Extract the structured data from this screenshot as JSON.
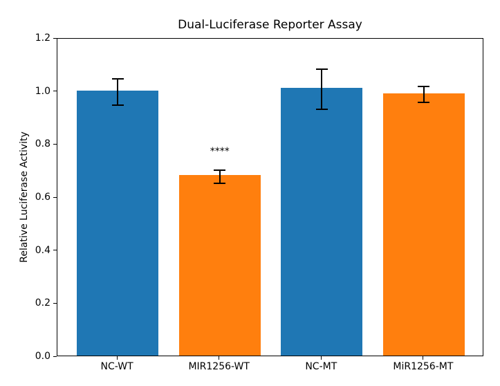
{
  "chart_data": {
    "type": "bar",
    "title": "Dual-Luciferase Reporter Assay",
    "ylabel": "Relative Luciferase Activity",
    "xlabel": "",
    "categories": [
      "NC-WT",
      "MIR1256-WT",
      "NC-MT",
      "MiR1256-MT"
    ],
    "values": [
      1.0,
      0.68,
      1.01,
      0.99
    ],
    "errors": [
      0.05,
      0.025,
      0.075,
      0.03
    ],
    "bar_colors": [
      "#1f77b4",
      "#ff7f0e",
      "#1f77b4",
      "#ff7f0e"
    ],
    "ylim": [
      0,
      1.2
    ],
    "yticks": [
      0.0,
      0.2,
      0.4,
      0.6,
      0.8,
      1.0,
      1.2
    ],
    "ytick_labels": [
      "0.0",
      "0.2",
      "0.4",
      "0.6",
      "0.8",
      "1.0",
      "1.2"
    ],
    "grid": false,
    "legend_position": "none",
    "annotations": [
      {
        "text": "****",
        "category": "MIR1256-WT",
        "bar_index": 1
      }
    ],
    "axis_color": "#000000",
    "background_color": "#ffffff"
  }
}
